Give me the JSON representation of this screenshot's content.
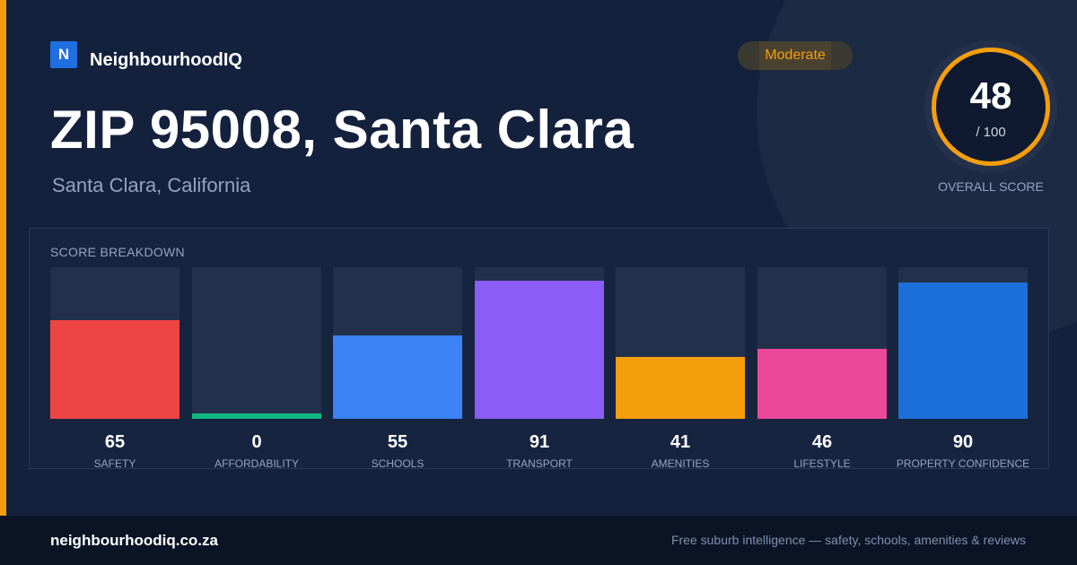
{
  "brand": {
    "logo_letter": "N",
    "name": "NeighbourhoodIQ"
  },
  "badge": {
    "label": "Moderate",
    "color": "#f59e0b"
  },
  "header": {
    "title": "ZIP 95008, Santa Clara",
    "subtitle": "Santa Clara, California"
  },
  "overall": {
    "score": "48",
    "out_of": "/ 100",
    "label": "OVERALL SCORE",
    "ring_color": "#f59e0b"
  },
  "breakdown": {
    "title": "SCORE BREAKDOWN",
    "max": 100,
    "items": [
      {
        "value": 65,
        "label": "SAFETY",
        "color": "#ef4444"
      },
      {
        "value": 0,
        "label": "AFFORDABILITY",
        "color": "#10b981"
      },
      {
        "value": 55,
        "label": "SCHOOLS",
        "color": "#3b82f6"
      },
      {
        "value": 91,
        "label": "TRANSPORT",
        "color": "#8b5cf6"
      },
      {
        "value": 41,
        "label": "AMENITIES",
        "color": "#f59e0b"
      },
      {
        "value": 46,
        "label": "LIFESTYLE",
        "color": "#ec4899"
      },
      {
        "value": 90,
        "label": "PROPERTY CONFIDENCE",
        "color": "#1d6fd9"
      }
    ]
  },
  "footer": {
    "url": "neighbourhoodiq.co.za",
    "tagline": "Free suburb intelligence — safety, schools, amenities & reviews"
  }
}
